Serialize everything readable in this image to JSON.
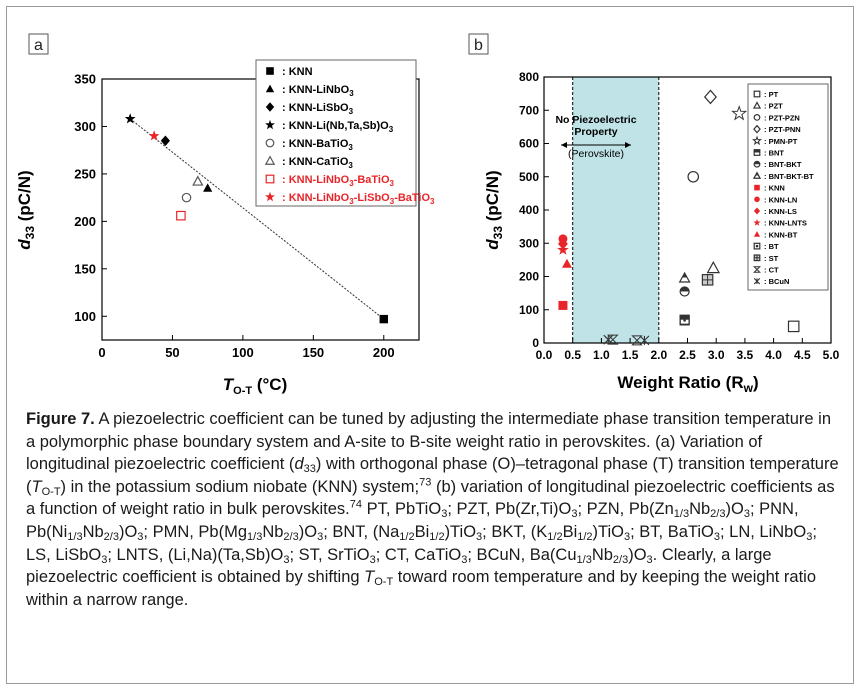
{
  "chart_data": [
    {
      "panel": "a",
      "type": "scatter",
      "xlabel": "T_O-T (°C)",
      "ylabel": "d33 (pC/N)",
      "xlim": [
        0,
        225
      ],
      "ylim": [
        75,
        350
      ],
      "xticks": [
        0,
        50,
        100,
        150,
        200
      ],
      "yticks": [
        100,
        150,
        200,
        250,
        300,
        350
      ],
      "legend_position": "top-right",
      "series": [
        {
          "name": ": KNN",
          "marker": "square-filled",
          "color": "#000000",
          "points": [
            [
              200,
              97
            ]
          ]
        },
        {
          "name": ": KNN-LiNbO3",
          "marker": "triangle-filled",
          "color": "#000000",
          "points": [
            [
              75,
              235
            ]
          ]
        },
        {
          "name": ": KNN-LiSbO3",
          "marker": "diamond-filled",
          "color": "#000000",
          "points": [
            [
              45,
              285
            ]
          ]
        },
        {
          "name": ": KNN-Li(Nb,Ta,Sb)O3",
          "marker": "star-filled",
          "color": "#000000",
          "points": [
            [
              20,
              308
            ]
          ]
        },
        {
          "name": ": KNN-BaTiO3",
          "marker": "circle-open",
          "color": "#555555",
          "points": [
            [
              60,
              225
            ]
          ]
        },
        {
          "name": ": KNN-CaTiO3",
          "marker": "triangle-open",
          "color": "#555555",
          "points": [
            [
              68,
              242
            ]
          ]
        },
        {
          "name": ": KNN-LiNbO3-BaTiO3",
          "marker": "square-open",
          "color": "#e8262a",
          "points": [
            [
              56,
              206
            ]
          ]
        },
        {
          "name": ": KNN-LiNbO3-LiSbO3-BaTiO3",
          "marker": "star-filled",
          "color": "#e8262a",
          "points": [
            [
              37,
              290
            ]
          ]
        }
      ],
      "trendline": [
        [
          20,
          308
        ],
        [
          200,
          97
        ]
      ]
    },
    {
      "panel": "b",
      "type": "scatter",
      "xlabel": "Weight Ratio (R_w)",
      "ylabel": "d33 (pC/N)",
      "xlim": [
        0.0,
        5.0
      ],
      "ylim": [
        0,
        800
      ],
      "xticks": [
        0.0,
        0.5,
        1.0,
        1.5,
        2.0,
        2.5,
        3.0,
        3.5,
        4.0,
        4.5,
        5.0
      ],
      "yticks": [
        0,
        100,
        200,
        300,
        400,
        500,
        600,
        700,
        800
      ],
      "shaded_region": {
        "x": [
          0.5,
          2.0
        ],
        "color": "#bfe3e6",
        "label": "No Piezoelectric Property",
        "sublabel": "(Perovskite)"
      },
      "legend_position": "top-right",
      "series": [
        {
          "name": ": PT",
          "marker": "square-open",
          "color": "#333333",
          "points": [
            [
              4.35,
              50
            ]
          ]
        },
        {
          "name": ": PZT",
          "marker": "triangle-open",
          "color": "#333333",
          "points": [
            [
              2.95,
              225
            ]
          ]
        },
        {
          "name": ": PZT-PZN",
          "marker": "circle-open",
          "color": "#333333",
          "points": [
            [
              2.6,
              500
            ]
          ]
        },
        {
          "name": ": PZT-PNN",
          "marker": "diamond-open",
          "color": "#333333",
          "points": [
            [
              2.9,
              740
            ]
          ]
        },
        {
          "name": ": PMN-PT",
          "marker": "star-open",
          "color": "#333333",
          "points": [
            [
              3.4,
              690
            ]
          ]
        },
        {
          "name": ": BNT",
          "marker": "square-half",
          "color": "#333333",
          "points": [
            [
              2.45,
              70
            ]
          ]
        },
        {
          "name": ": BNT-BKT",
          "marker": "circle-half",
          "color": "#333333",
          "points": [
            [
              2.45,
              155
            ]
          ]
        },
        {
          "name": ": BNT-BKT-BT",
          "marker": "triangle-half",
          "color": "#333333",
          "points": [
            [
              2.45,
              195
            ]
          ]
        },
        {
          "name": ": KNN",
          "marker": "square-filled",
          "color": "#e8262a",
          "points": [
            [
              0.33,
              113
            ]
          ]
        },
        {
          "name": ": KNN-LN",
          "marker": "circle-filled",
          "color": "#e8262a",
          "points": [
            [
              0.33,
              313
            ]
          ]
        },
        {
          "name": ": KNN-LS",
          "marker": "diamond-filled",
          "color": "#e8262a",
          "points": [
            [
              0.33,
              298
            ]
          ]
        },
        {
          "name": ": KNN-LNTS",
          "marker": "star-filled",
          "color": "#e8262a",
          "points": [
            [
              0.33,
              280
            ]
          ]
        },
        {
          "name": ": KNN-BT",
          "marker": "triangle-filled",
          "color": "#e8262a",
          "points": [
            [
              0.4,
              238
            ]
          ]
        },
        {
          "name": ": BT",
          "marker": "square-dot",
          "color": "#333333",
          "points": [
            [
              2.45,
              68
            ]
          ]
        },
        {
          "name": ": ST",
          "marker": "square-cross",
          "color": "#333333",
          "points": [
            [
              2.85,
              190
            ]
          ]
        },
        {
          "name": ": CT",
          "marker": "hourglass",
          "color": "#333333",
          "points": [
            [
              1.2,
              10
            ],
            [
              1.62,
              8
            ]
          ]
        },
        {
          "name": ": BCuN",
          "marker": "asterisk",
          "color": "#333333",
          "points": [
            [
              1.12,
              10
            ],
            [
              1.75,
              8
            ]
          ]
        }
      ]
    }
  ],
  "figure": {
    "panel_a_tag": "a",
    "panel_b_tag": "b",
    "xaxis_a_label_main": "T",
    "xaxis_a_label_sub": "O-T",
    "xaxis_a_label_unit": " (°C)",
    "yaxis_label_main": "d",
    "yaxis_label_sub": "33",
    "yaxis_label_unit": " (pC/N)",
    "xaxis_b_label_main": "Weight Ratio (R",
    "xaxis_b_label_sub": "w",
    "xaxis_b_label_end": ")",
    "shade_label_1": "No Piezoelectric",
    "shade_label_2": "Property",
    "shade_label_3": "(Perovskite)"
  },
  "legend_a": [
    {
      "text": ": KNN",
      "sub": ""
    },
    {
      "text": ": KNN-LiNbO",
      "sub": "3",
      "rest": ""
    },
    {
      "text": ": KNN-LiSbO",
      "sub": "3",
      "rest": ""
    },
    {
      "text": ": KNN-Li(Nb,Ta,Sb)O",
      "sub": "3",
      "rest": ""
    },
    {
      "text": ": KNN-BaTiO",
      "sub": "3",
      "rest": ""
    },
    {
      "text": ": KNN-CaTiO",
      "sub": "3",
      "rest": ""
    },
    {
      "text": ": KNN-LiNbO",
      "sub": "3",
      "rest": "-BaTiO",
      "sub2": "3"
    },
    {
      "text": ": KNN-LiNbO",
      "sub": "3",
      "rest": "-LiSbO",
      "sub2": "3",
      "rest2": "-BaTiO",
      "sub3": "3"
    }
  ],
  "caption": {
    "label": "Figure 7.",
    "s1": " A piezoelectric coefficient can be tuned by adjusting the intermediate phase transition temperature in a polymorphic phase boundary system and A-site to B-site weight ratio in perovskites. (a) Variation of longitudinal piezoelectric coefficient (",
    "d33_d": "d",
    "d33_sub": "33",
    "s2": ") with orthogonal phase (O)–tetragonal phase (T) transition temperature (",
    "t_T": "T",
    "t_sub": "O-T",
    "s3": ") in the potassium sodium niobate (KNN) system;",
    "ref73": "73",
    "s4": " (b) variation of longitudinal piezoelectric coefficients as a function of weight ratio in bulk perovskites.",
    "ref74": "74",
    "s5": " PT, PbTiO",
    "s5b": "; PZT, Pb(Zr,Ti)O",
    "s5c": "; PZN, Pb(Zn",
    "frac13": "1/3",
    "frac23": "2/3",
    "frac12": "1/2",
    "n3": "3",
    "s6": "Nb",
    "s7": ")O",
    "s8": "; PNN, Pb(Ni",
    "s9": "; PMN, Pb(Mg",
    "s10": "; BNT, (Na",
    "s11": "Bi",
    "s12": ")TiO",
    "s13": "; BKT, (K",
    "s14": "; BT, BaTiO",
    "s15": "; LN, LiNbO",
    "s16": "; LS, LiSbO",
    "s17": "; LNTS, (Li,Na)(Ta,Sb)O",
    "s18": "; ST, SrTiO",
    "s19": "; CT, CaTiO",
    "s20": "; BCuN, Ba(Cu",
    "s21": ". Clearly, a large piezoelectric coefficient is obtained by shifting ",
    "s22": " toward room temperature and by keeping the weight ratio within a narrow range."
  }
}
